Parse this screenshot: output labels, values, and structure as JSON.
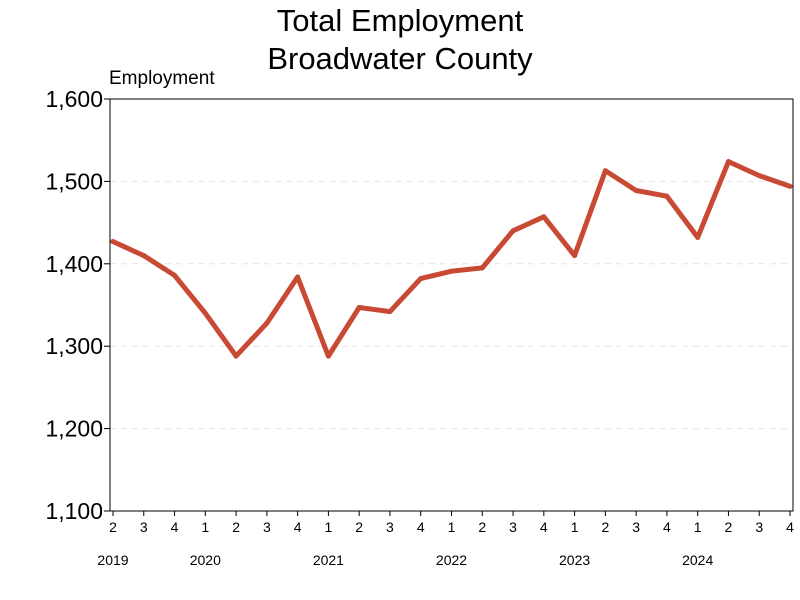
{
  "title_line1": "Total Employment",
  "title_line2": "Broadwater County",
  "chart_data": {
    "type": "line",
    "title": "Total Employment Broadwater County",
    "ylabel": "Employment",
    "xlabel": "",
    "ylim": [
      1100,
      1600
    ],
    "yticks": [
      1100,
      1200,
      1300,
      1400,
      1500,
      1600
    ],
    "ytick_labels": [
      "1,100",
      "1,200",
      "1,300",
      "1,400",
      "1,500",
      "1,600"
    ],
    "grid": "horizontal dashed",
    "line_color": "#c84a34",
    "categories": [
      "2",
      "3",
      "4",
      "1",
      "2",
      "3",
      "4",
      "1",
      "2",
      "3",
      "4",
      "1",
      "2",
      "3",
      "4",
      "1",
      "2",
      "3",
      "4",
      "1",
      "2",
      "3",
      "4"
    ],
    "years": [
      {
        "label": "2019",
        "index": 0
      },
      {
        "label": "2020",
        "index": 3
      },
      {
        "label": "2021",
        "index": 7
      },
      {
        "label": "2022",
        "index": 11
      },
      {
        "label": "2023",
        "index": 15
      },
      {
        "label": "2024",
        "index": 19
      }
    ],
    "series": [
      {
        "values": [
          1427,
          1410,
          1386,
          1340,
          1288,
          1328,
          1384,
          1288,
          1347,
          1342,
          1382,
          1391,
          1395,
          1440,
          1457,
          1410,
          1513,
          1489,
          1482,
          1432,
          1524,
          1507,
          1494
        ]
      }
    ]
  }
}
